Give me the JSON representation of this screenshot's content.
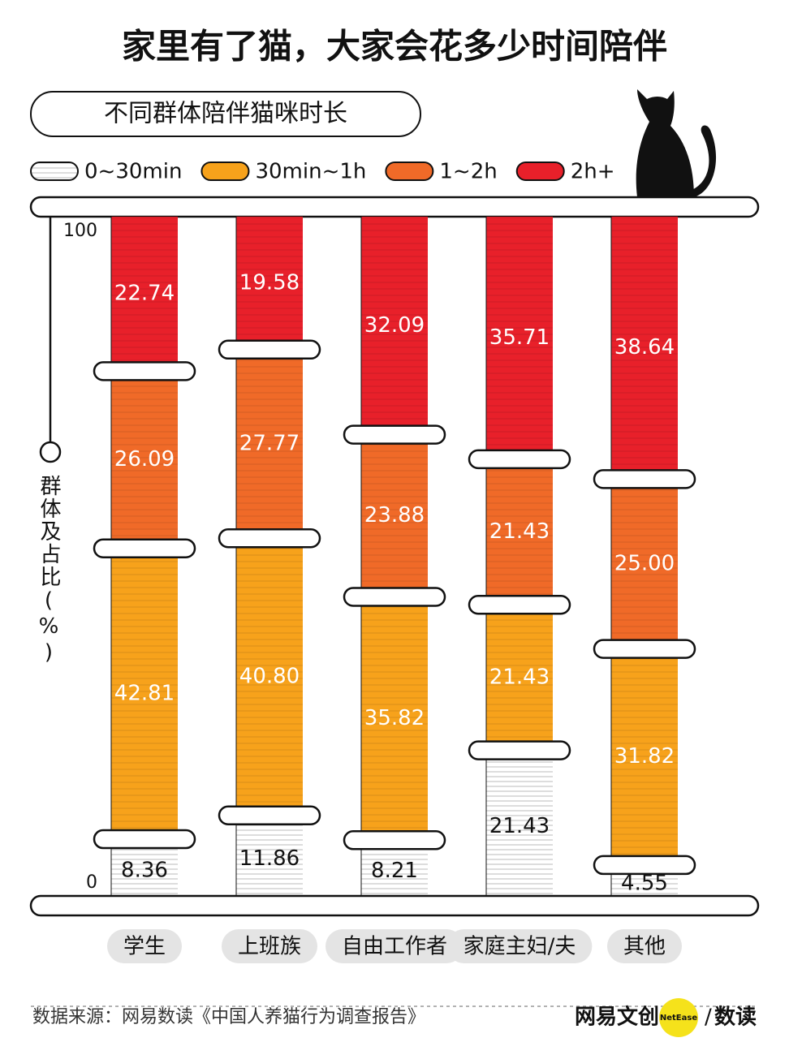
{
  "chart_data": {
    "type": "stacked-bar",
    "title": "家里有了猫，大家会花多少时间陪伴",
    "subtitle": "不同群体陪伴猫咪时长",
    "y_label": "群体及占比(%)",
    "categories": [
      "学生",
      "上班族",
      "自由工作者",
      "家庭主妇/夫",
      "其他"
    ],
    "series": [
      {
        "name": "0~30min",
        "color": "#ffffff",
        "values": [
          8.36,
          11.86,
          8.21,
          21.43,
          4.55
        ],
        "value_labels": [
          "8.36",
          "11.86",
          "8.21",
          "21.43",
          "4.55"
        ]
      },
      {
        "name": "30min~1h",
        "color": "#f7a21b",
        "values": [
          42.81,
          40.8,
          35.82,
          21.43,
          31.82
        ],
        "value_labels": [
          "42.81",
          "40.80",
          "35.82",
          "21.43",
          "31.82"
        ]
      },
      {
        "name": "1~2h",
        "color": "#f06a28",
        "values": [
          26.09,
          27.77,
          23.88,
          21.43,
          25.0
        ],
        "value_labels": [
          "26.09",
          "27.77",
          "23.88",
          "21.43",
          "25.00"
        ]
      },
      {
        "name": "2h+",
        "color": "#e8202a",
        "values": [
          22.74,
          19.58,
          32.09,
          35.71,
          38.64
        ],
        "value_labels": [
          "22.74",
          "19.58",
          "32.09",
          "35.71",
          "38.64"
        ]
      }
    ],
    "ylim": [
      0,
      100
    ],
    "yticks": [
      0,
      100
    ],
    "source": "数据来源：网易数读《中国人养猫行为调查报告》",
    "brand": {
      "name": "网易文创",
      "badge": "NetEase",
      "column": "数读"
    }
  }
}
